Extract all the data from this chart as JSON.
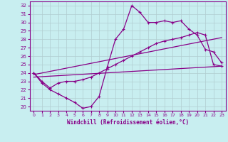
{
  "xlabel": "Windchill (Refroidissement éolien,°C)",
  "xlim": [
    -0.5,
    23.5
  ],
  "ylim": [
    19.5,
    32.5
  ],
  "yticks": [
    20,
    21,
    22,
    23,
    24,
    25,
    26,
    27,
    28,
    29,
    30,
    31,
    32
  ],
  "xticks": [
    0,
    1,
    2,
    3,
    4,
    5,
    6,
    7,
    8,
    9,
    10,
    11,
    12,
    13,
    14,
    15,
    16,
    17,
    18,
    19,
    20,
    21,
    22,
    23
  ],
  "bg_color": "#c8eef0",
  "grid_color": "#b0ccd0",
  "line_color": "#880088",
  "line1_x": [
    0,
    1,
    2,
    3,
    4,
    5,
    6,
    7,
    8,
    9,
    10,
    11,
    12,
    13,
    14,
    15,
    16,
    17,
    18,
    19,
    20,
    21,
    22,
    23
  ],
  "line1_y": [
    24.0,
    22.8,
    22.0,
    21.5,
    21.0,
    20.5,
    19.8,
    20.0,
    21.2,
    24.7,
    28.0,
    29.2,
    32.0,
    31.2,
    30.0,
    30.0,
    30.2,
    30.0,
    30.2,
    29.2,
    28.5,
    26.8,
    26.5,
    25.2
  ],
  "line2_x": [
    0,
    23
  ],
  "line2_y": [
    23.8,
    28.2
  ],
  "line3_x": [
    0,
    23
  ],
  "line3_y": [
    23.5,
    24.8
  ],
  "line4_x": [
    0,
    1,
    2,
    3,
    4,
    5,
    6,
    7,
    8,
    9,
    10,
    11,
    12,
    13,
    14,
    15,
    16,
    17,
    18,
    19,
    20,
    21,
    22,
    23
  ],
  "line4_y": [
    24.0,
    23.0,
    22.2,
    22.8,
    23.0,
    23.0,
    23.2,
    23.5,
    24.0,
    24.5,
    25.0,
    25.5,
    26.0,
    26.5,
    27.0,
    27.5,
    27.8,
    28.0,
    28.2,
    28.5,
    28.8,
    28.5,
    25.0,
    24.8
  ]
}
